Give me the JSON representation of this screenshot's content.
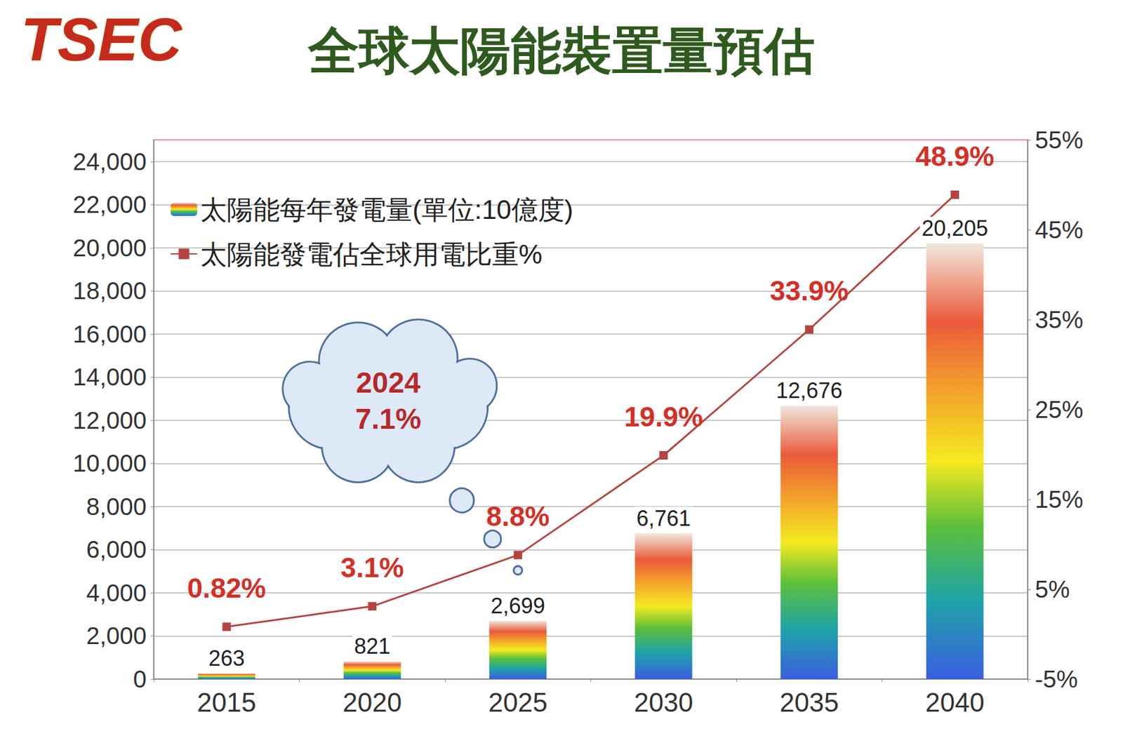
{
  "chart_data": {
    "type": "bar",
    "title": "全球太陽能裝置量預估",
    "logo": "TSEC",
    "categories": [
      "2015",
      "2020",
      "2025",
      "2030",
      "2035",
      "2040"
    ],
    "series": [
      {
        "name": "太陽能每年發電量(單位:10億度)",
        "type": "bar",
        "values": [
          263,
          821,
          2699,
          6761,
          12676,
          20205
        ],
        "value_labels": [
          "263",
          "821",
          "2,699",
          "6,761",
          "12,676",
          "20,205"
        ]
      },
      {
        "name": "太陽能發電佔全球用電比重%",
        "type": "line",
        "axis": "y2",
        "color": "#b5443f",
        "marker": "square",
        "values": [
          0.82,
          3.1,
          8.8,
          19.9,
          33.9,
          48.9
        ],
        "value_labels": [
          "0.82%",
          "3.1%",
          "8.8%",
          "19.9%",
          "33.9%",
          "48.9%"
        ]
      }
    ],
    "ylim": [
      0,
      25000
    ],
    "yticks": [
      0,
      {
        "value": 2000,
        "label": "2,000"
      },
      {
        "value": 4000,
        "label": "4,000"
      },
      {
        "value": 6000,
        "label": "6,000"
      },
      {
        "value": 8000,
        "label": "8,000"
      },
      {
        "value": 10000,
        "label": "10,000"
      },
      {
        "value": 12000,
        "label": "12,000"
      },
      {
        "value": 14000,
        "label": "14,000"
      },
      {
        "value": 16000,
        "label": "16,000"
      },
      {
        "value": 18000,
        "label": "18,000"
      },
      {
        "value": 20000,
        "label": "20,000"
      },
      {
        "value": 22000,
        "label": "22,000"
      },
      {
        "value": 24000,
        "label": "24,000"
      }
    ],
    "y2lim": [
      -5,
      55
    ],
    "y2ticks": [
      {
        "value": -5,
        "label": "-5%"
      },
      {
        "value": 5,
        "label": "5%"
      },
      {
        "value": 15,
        "label": "15%"
      },
      {
        "value": 25,
        "label": "25%"
      },
      {
        "value": 35,
        "label": "35%"
      },
      {
        "value": 45,
        "label": "45%"
      },
      {
        "value": 55,
        "label": "55%"
      }
    ],
    "annotations": [
      {
        "x": "2024",
        "value": 7.1,
        "label": "7.1%"
      }
    ],
    "grid": true,
    "legend": "upper left",
    "data_labels": true
  }
}
